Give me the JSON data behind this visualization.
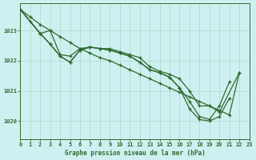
{
  "title": "Graphe pression niveau de la mer (hPa)",
  "bg_color": "#cff0f0",
  "grid_color": "#b8ddd8",
  "line_color": "#2d6a2d",
  "xlim": [
    0,
    23
  ],
  "ylim": [
    1019.4,
    1023.9
  ],
  "yticks": [
    1020,
    1021,
    1022,
    1023
  ],
  "xticks": [
    0,
    1,
    2,
    3,
    4,
    5,
    6,
    7,
    8,
    9,
    10,
    11,
    12,
    13,
    14,
    15,
    16,
    17,
    18,
    19,
    20,
    21,
    22,
    23
  ],
  "lines": [
    {
      "x": [
        0,
        1,
        2,
        3,
        4,
        5,
        6,
        7,
        8,
        9,
        10,
        11,
        12,
        13,
        14,
        15,
        16,
        17,
        18,
        19,
        20,
        21,
        22
      ],
      "y": [
        1023.7,
        1023.45,
        1023.2,
        1023.0,
        1022.8,
        1022.6,
        1022.4,
        1022.25,
        1022.1,
        1022.0,
        1021.85,
        1021.7,
        1021.55,
        1021.4,
        1021.25,
        1021.1,
        1020.95,
        1020.8,
        1020.65,
        1020.5,
        1020.35,
        1020.2,
        1021.6
      ]
    },
    {
      "x": [
        0,
        1,
        2,
        3,
        4,
        5,
        6,
        7,
        8,
        9,
        10,
        11,
        12,
        13,
        14,
        15,
        16,
        17,
        18,
        19,
        20,
        22
      ],
      "y": [
        1023.7,
        1023.3,
        1022.9,
        1023.0,
        1022.2,
        1022.15,
        1022.4,
        1022.45,
        1022.4,
        1022.4,
        1022.3,
        1022.2,
        1022.1,
        1021.8,
        1021.65,
        1021.55,
        1021.4,
        1021.0,
        1020.5,
        1020.5,
        1020.3,
        1021.6
      ]
    },
    {
      "x": [
        0,
        2,
        3,
        4,
        5,
        6,
        7,
        8,
        9,
        10,
        11,
        12,
        13,
        14,
        15,
        16,
        17,
        18,
        19,
        20,
        21
      ],
      "y": [
        1023.7,
        1022.9,
        1022.55,
        1022.15,
        1021.95,
        1022.35,
        1022.45,
        1022.4,
        1022.35,
        1022.25,
        1022.15,
        1021.95,
        1021.7,
        1021.6,
        1021.45,
        1021.1,
        1020.65,
        1020.15,
        1020.05,
        1020.5,
        1021.3
      ]
    },
    {
      "x": [
        0,
        2,
        3,
        4,
        5,
        6,
        7,
        8,
        9,
        10,
        11,
        12,
        13,
        14,
        15,
        16,
        17,
        18,
        19,
        20,
        21
      ],
      "y": [
        1023.7,
        1022.9,
        1022.55,
        1022.15,
        1021.95,
        1022.35,
        1022.45,
        1022.4,
        1022.35,
        1022.25,
        1022.15,
        1021.95,
        1021.7,
        1021.6,
        1021.45,
        1021.1,
        1020.4,
        1020.05,
        1020.0,
        1020.15,
        1020.75
      ]
    }
  ]
}
